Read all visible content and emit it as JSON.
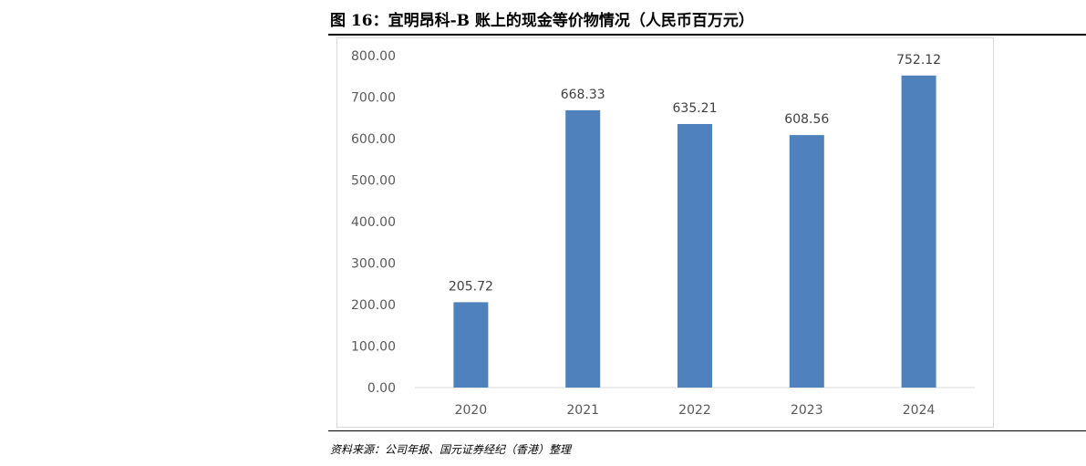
{
  "figure": {
    "title": "图 16：宜明昂科-B 账上的现金等价物情况（人民币百万元）",
    "source": "资料来源：公司年报、国元证券经纪（香港）整理"
  },
  "chart_data": {
    "type": "bar",
    "categories": [
      "2020",
      "2021",
      "2022",
      "2023",
      "2024"
    ],
    "values": [
      205.72,
      668.33,
      635.21,
      608.56,
      752.12
    ],
    "value_labels": [
      "205.72",
      "668.33",
      "635.21",
      "608.56",
      "752.12"
    ],
    "ylim": [
      0,
      800
    ],
    "yticks": [
      "0.00",
      "100.00",
      "200.00",
      "300.00",
      "400.00",
      "500.00",
      "600.00",
      "700.00",
      "800.00"
    ],
    "grid": false,
    "legend": "none",
    "bar_color": "#4f81bd",
    "xlabel": "",
    "ylabel": ""
  }
}
